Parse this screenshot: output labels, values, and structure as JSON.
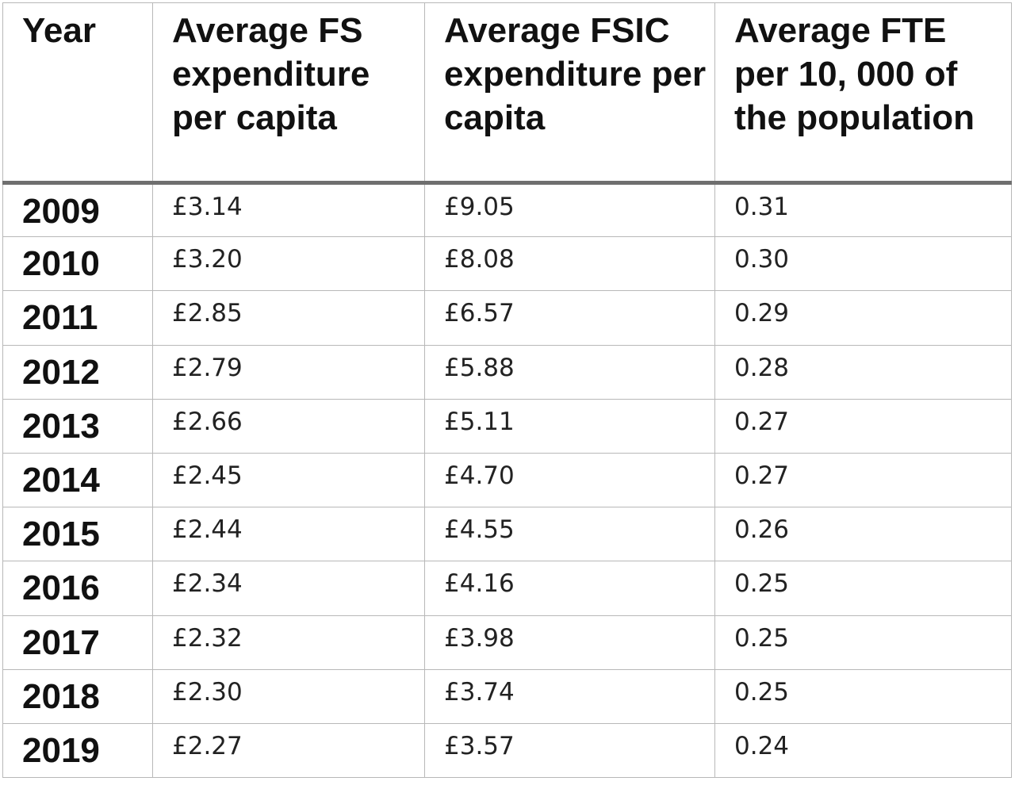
{
  "table": {
    "headers": [
      "Year",
      "Average FS expenditure per capita",
      "Average FSIC expenditure per capita",
      "Average FTE per 10, 000 of the population"
    ],
    "rows": [
      [
        "2009",
        "£3.14",
        "£9.05",
        "0.31"
      ],
      [
        "2010",
        "£3.20",
        "£8.08",
        "0.30"
      ],
      [
        "2011",
        "£2.85",
        "£6.57",
        "0.29"
      ],
      [
        "2012",
        "£2.79",
        "£5.88",
        "0.28"
      ],
      [
        "2013",
        "£2.66",
        "£5.11",
        "0.27"
      ],
      [
        "2014",
        "£2.45",
        "£4.70",
        "0.27"
      ],
      [
        "2015",
        "£2.44",
        "£4.55",
        "0.26"
      ],
      [
        "2016",
        "£2.34",
        "£4.16",
        "0.25"
      ],
      [
        "2017",
        "£2.32",
        "£3.98",
        "0.25"
      ],
      [
        "2018",
        "£2.30",
        "£3.74",
        "0.25"
      ],
      [
        "2019",
        "£2.27",
        "£3.57",
        "0.24"
      ]
    ]
  }
}
